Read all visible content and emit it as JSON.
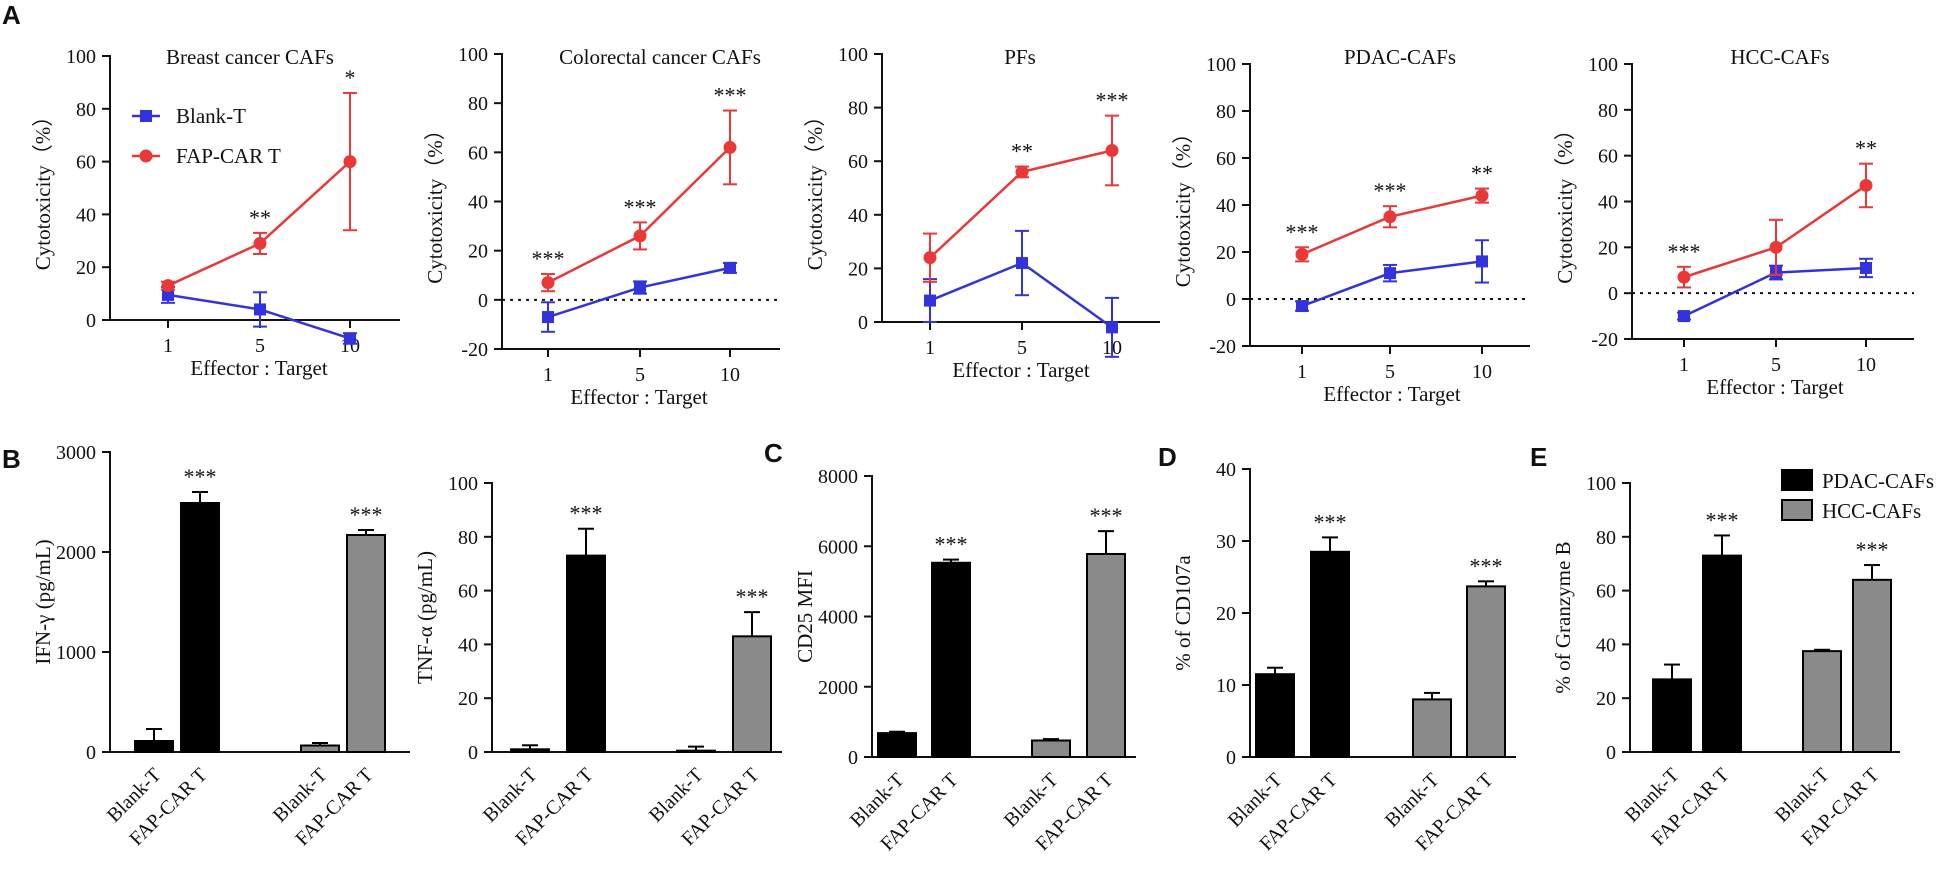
{
  "panel_letters": [
    "A",
    "B",
    "C",
    "D",
    "E"
  ],
  "line_legend": {
    "blank": "Blank-T",
    "car": "FAP-CAR T"
  },
  "bar_legend": {
    "pdac": "PDAC-CAFs",
    "hcc": "HCC-CAFs"
  },
  "colors": {
    "blank": "#3333dd",
    "car": "#e83838",
    "pdac": "#000000",
    "hcc": "#8a8a8a",
    "axis": "#111111"
  },
  "chart_data": [
    {
      "type": "line",
      "id": "breast",
      "title": "Breast cancer CAFs",
      "xlabel": "Effector : Target",
      "ylabel": "Cytotoxicity（%）",
      "categories": [
        "1",
        "5",
        "10"
      ],
      "ylim": [
        0,
        100
      ],
      "yticks": [
        "0",
        "20",
        "40",
        "60",
        "80",
        "100"
      ],
      "legend": true,
      "series": [
        {
          "name": "Blank-T",
          "values": [
            9.5,
            4,
            -7
          ],
          "errors": [
            3,
            6.5,
            2
          ]
        },
        {
          "name": "FAP-CAR T",
          "values": [
            13,
            29,
            60
          ],
          "errors": [
            1.5,
            4,
            26
          ]
        }
      ],
      "stars": [
        "",
        "**",
        "*"
      ]
    },
    {
      "type": "line",
      "id": "colorectal",
      "title": "Colorectal cancer CAFs",
      "xlabel": "Effector : Target",
      "ylabel": "Cytotoxicity（%）",
      "categories": [
        "1",
        "5",
        "10"
      ],
      "ylim": [
        -20,
        100
      ],
      "yticks": [
        "-20",
        "0",
        "20",
        "40",
        "60",
        "80",
        "100"
      ],
      "series": [
        {
          "name": "Blank-T",
          "values": [
            -7,
            5,
            13
          ],
          "errors": [
            6,
            2.5,
            2
          ]
        },
        {
          "name": "FAP-CAR T",
          "values": [
            7,
            26,
            62
          ],
          "errors": [
            3.5,
            5.5,
            15
          ]
        }
      ],
      "stars": [
        "***",
        "***",
        "***"
      ]
    },
    {
      "type": "line",
      "id": "pfs",
      "title": "PFs",
      "xlabel": "Effector : Target",
      "ylabel": "Cytotoxicity（%）",
      "categories": [
        "1",
        "5",
        "10"
      ],
      "ylim": [
        0,
        100
      ],
      "yticks": [
        "0",
        "20",
        "40",
        "60",
        "80",
        "100"
      ],
      "series": [
        {
          "name": "Blank-T",
          "values": [
            8,
            22,
            -2
          ],
          "errors": [
            8,
            12,
            11
          ]
        },
        {
          "name": "FAP-CAR T",
          "values": [
            24,
            56,
            64
          ],
          "errors": [
            9,
            2,
            13
          ]
        }
      ],
      "stars": [
        "",
        "**",
        "***"
      ]
    },
    {
      "type": "line",
      "id": "pdac",
      "title": "PDAC-CAFs",
      "xlabel": "Effector : Target",
      "ylabel": "Cytotoxicity（%）",
      "categories": [
        "1",
        "5",
        "10"
      ],
      "ylim": [
        -20,
        100
      ],
      "yticks": [
        "-20",
        "0",
        "20",
        "40",
        "60",
        "80",
        "100"
      ],
      "series": [
        {
          "name": "Blank-T",
          "values": [
            -3,
            11,
            16
          ],
          "errors": [
            2,
            3.5,
            9
          ]
        },
        {
          "name": "FAP-CAR T",
          "values": [
            19,
            35,
            44
          ],
          "errors": [
            3,
            4.5,
            3
          ]
        }
      ],
      "stars": [
        "***",
        "***",
        "**"
      ]
    },
    {
      "type": "line",
      "id": "hcc",
      "title": "HCC-CAFs",
      "xlabel": "Effector : Target",
      "ylabel": "Cytotoxicity（%）",
      "categories": [
        "1",
        "5",
        "10"
      ],
      "ylim": [
        -20,
        100
      ],
      "yticks": [
        "-20",
        "0",
        "20",
        "40",
        "60",
        "80",
        "100"
      ],
      "series": [
        {
          "name": "Blank-T",
          "values": [
            -10,
            9,
            11
          ],
          "errors": [
            1.5,
            3,
            4
          ]
        },
        {
          "name": "FAP-CAR T",
          "values": [
            7,
            20,
            47
          ],
          "errors": [
            4.5,
            12,
            9.5
          ]
        }
      ],
      "stars": [
        "***",
        "",
        "**"
      ]
    },
    {
      "type": "bar",
      "id": "ifng",
      "ylabel": "IFN-γ (pg/mL)",
      "categories": [
        "Blank-T",
        "FAP-CAR T",
        "Blank-T",
        "FAP-CAR T"
      ],
      "groups": [
        "PDAC-CAFs",
        "PDAC-CAFs",
        "HCC-CAFs",
        "HCC-CAFs"
      ],
      "values": [
        110,
        2490,
        65,
        2170
      ],
      "errors": [
        120,
        110,
        25,
        50
      ],
      "ylim": [
        0,
        3000
      ],
      "yticks": [
        "0",
        "1000",
        "2000",
        "3000"
      ],
      "stars": [
        "",
        "***",
        "",
        "***"
      ]
    },
    {
      "type": "bar",
      "id": "tnfa",
      "ylabel": "TNF-α (pg/mL)",
      "categories": [
        "Blank-T",
        "FAP-CAR T",
        "Blank-T",
        "FAP-CAR T"
      ],
      "groups": [
        "PDAC-CAFs",
        "PDAC-CAFs",
        "HCC-CAFs",
        "HCC-CAFs"
      ],
      "values": [
        1,
        73,
        0.5,
        43
      ],
      "errors": [
        1.5,
        10,
        1.5,
        9
      ],
      "ylim": [
        0,
        100
      ],
      "yticks": [
        "0",
        "20",
        "40",
        "60",
        "80",
        "100"
      ],
      "stars": [
        "",
        "***",
        "",
        "***"
      ]
    },
    {
      "type": "bar",
      "id": "cd25",
      "ylabel": "CD25 MFI",
      "categories": [
        "Blank-T",
        "FAP-CAR T",
        "Blank-T",
        "FAP-CAR T"
      ],
      "groups": [
        "PDAC-CAFs",
        "PDAC-CAFs",
        "HCC-CAFs",
        "HCC-CAFs"
      ],
      "values": [
        680,
        5530,
        470,
        5780
      ],
      "errors": [
        40,
        90,
        40,
        650
      ],
      "ylim": [
        0,
        8000
      ],
      "yticks": [
        "0",
        "2000",
        "4000",
        "6000",
        "8000"
      ],
      "stars": [
        "",
        "***",
        "",
        "***"
      ]
    },
    {
      "type": "bar",
      "id": "cd107a",
      "ylabel": "% of CD107a",
      "categories": [
        "Blank-T",
        "FAP-CAR T",
        "Blank-T",
        "FAP-CAR T"
      ],
      "groups": [
        "PDAC-CAFs",
        "PDAC-CAFs",
        "HCC-CAFs",
        "HCC-CAFs"
      ],
      "values": [
        11.5,
        28.5,
        8,
        23.7
      ],
      "errors": [
        0.9,
        2,
        0.9,
        0.7
      ],
      "ylim": [
        0,
        40
      ],
      "yticks": [
        "0",
        "10",
        "20",
        "30",
        "40"
      ],
      "stars": [
        "",
        "***",
        "",
        "***"
      ]
    },
    {
      "type": "bar",
      "id": "granzyme",
      "ylabel": "% of Granzyme B",
      "categories": [
        "Blank-T",
        "FAP-CAR T",
        "Blank-T",
        "FAP-CAR T"
      ],
      "groups": [
        "PDAC-CAFs",
        "PDAC-CAFs",
        "HCC-CAFs",
        "HCC-CAFs"
      ],
      "values": [
        27,
        73,
        37.5,
        64
      ],
      "errors": [
        5.5,
        7.5,
        0.5,
        5.5
      ],
      "ylim": [
        0,
        100
      ],
      "yticks": [
        "0",
        "20",
        "40",
        "60",
        "80",
        "100"
      ],
      "stars": [
        "",
        "***",
        "",
        "***"
      ],
      "legend": true
    }
  ]
}
